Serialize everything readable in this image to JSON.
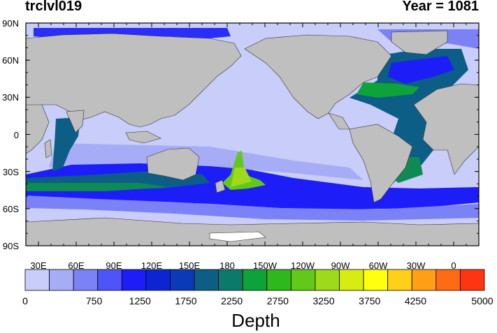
{
  "header": {
    "variable": "trclvl019",
    "year": "Year = 1081"
  },
  "map": {
    "projection": "cylindrical-equidistant",
    "lon_range": [
      20,
      380
    ],
    "lat_range": [
      -90,
      90
    ],
    "land_color": "#bfbfbf",
    "ice_color": "#ffffff",
    "lat_labels": [
      "90N",
      "60N",
      "30N",
      "0",
      "30S",
      "60S",
      "90S"
    ],
    "lon_labels": [
      "30E",
      "60E",
      "90E",
      "120E",
      "150E",
      "180",
      "150W",
      "120W",
      "90W",
      "60W",
      "30W",
      "0"
    ]
  },
  "colorbar": {
    "title": "Depth",
    "labels": [
      "0",
      "750",
      "1250",
      "1750",
      "2250",
      "2750",
      "3250",
      "3750",
      "4250",
      "5000"
    ],
    "colors": [
      "#c8cdf9",
      "#a6adf6",
      "#7b82f6",
      "#4e55f6",
      "#1d1df7",
      "#0b25d4",
      "#0a3ab8",
      "#0c5e86",
      "#0c7a6a",
      "#0ea23a",
      "#2eb81e",
      "#62c91a",
      "#9ed91a",
      "#d6ec12",
      "#ffff10",
      "#ffd01a",
      "#ff9f16",
      "#ff6a14",
      "#ff3412"
    ],
    "range": [
      0,
      5000
    ]
  }
}
